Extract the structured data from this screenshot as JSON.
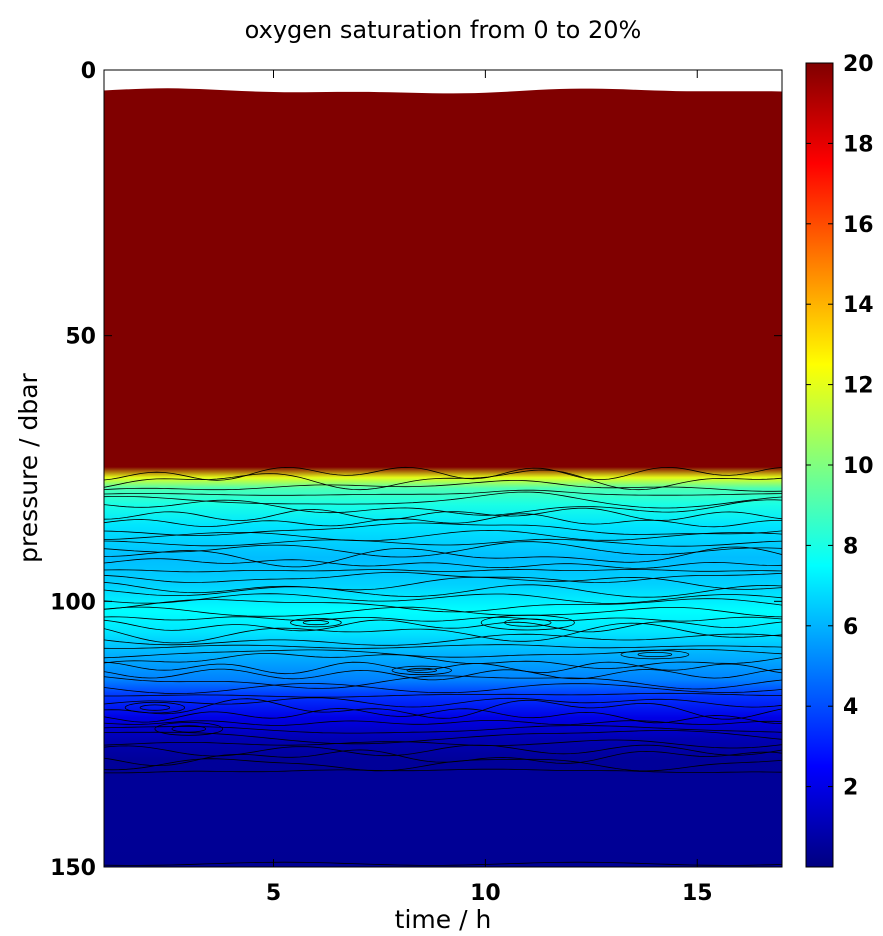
{
  "chart_data": {
    "type": "heatmap",
    "title": "oxygen saturation from 0 to 20%",
    "xlabel": "time / h",
    "ylabel": "pressure / dbar",
    "xlim": [
      1,
      17
    ],
    "ylim": [
      150,
      0
    ],
    "y_axis_direction": "down",
    "x_ticks": [
      5,
      10,
      15
    ],
    "y_ticks": [
      0,
      50,
      100,
      150
    ],
    "colorbar": {
      "range": [
        0,
        20
      ],
      "ticks": [
        2,
        4,
        6,
        8,
        10,
        12,
        14,
        16,
        18,
        20
      ],
      "colormap": "jet"
    },
    "contour_lines": true,
    "profile": [
      {
        "pressure": 4,
        "oxygen": 20
      },
      {
        "pressure": 75,
        "oxygen": 20
      },
      {
        "pressure": 77,
        "oxygen": 12
      },
      {
        "pressure": 79,
        "oxygen": 9
      },
      {
        "pressure": 82,
        "oxygen": 8
      },
      {
        "pressure": 86,
        "oxygen": 7
      },
      {
        "pressure": 92,
        "oxygen": 6.2
      },
      {
        "pressure": 97,
        "oxygen": 6.6
      },
      {
        "pressure": 102,
        "oxygen": 7.5
      },
      {
        "pressure": 106,
        "oxygen": 7
      },
      {
        "pressure": 110,
        "oxygen": 6
      },
      {
        "pressure": 115,
        "oxygen": 5
      },
      {
        "pressure": 118,
        "oxygen": 3.5
      },
      {
        "pressure": 122,
        "oxygen": 2
      },
      {
        "pressure": 126,
        "oxygen": 1
      },
      {
        "pressure": 130,
        "oxygen": 0.5
      },
      {
        "pressure": 150,
        "oxygen": 0.4
      }
    ]
  }
}
